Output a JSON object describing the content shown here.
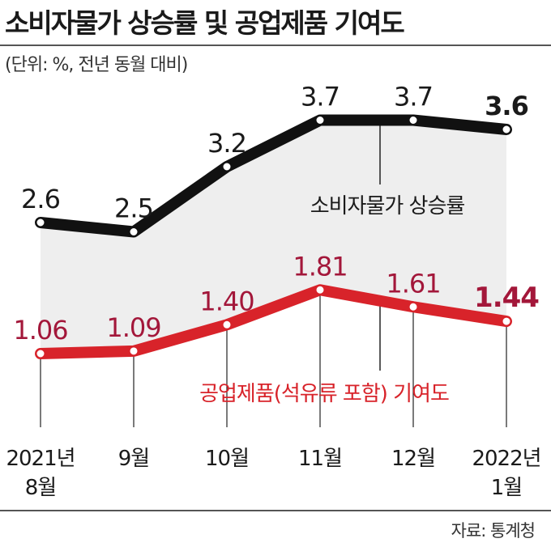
{
  "header": {
    "title": "소비자물가 상승률 및 공업제품 기여도",
    "subtitle": "(단위: %, 전년 동월 대비)"
  },
  "footer": {
    "source": "자료: 통계청"
  },
  "colors": {
    "cpi": "#111111",
    "industrial": "#d8232a",
    "industrial_label": "#a3173a",
    "band": "#eeeeee"
  },
  "chart_data": {
    "type": "line",
    "categories": [
      "2021년\n8월",
      "9월",
      "10월",
      "11월",
      "12월",
      "2022년\n1월"
    ],
    "series": [
      {
        "name": "소비자물가 상승률",
        "values": [
          2.6,
          2.5,
          3.2,
          3.7,
          3.7,
          3.6
        ],
        "labels": [
          "2.6",
          "2.5",
          "3.2",
          "3.7",
          "3.7",
          "3.6"
        ]
      },
      {
        "name": "공업제품(석유류 포함) 기여도",
        "values": [
          1.06,
          1.09,
          1.4,
          1.81,
          1.61,
          1.44
        ],
        "labels": [
          "1.06",
          "1.09",
          "1.40",
          "1.81",
          "1.61",
          "1.44"
        ]
      }
    ],
    "grid": false,
    "legend": "inline labels"
  }
}
